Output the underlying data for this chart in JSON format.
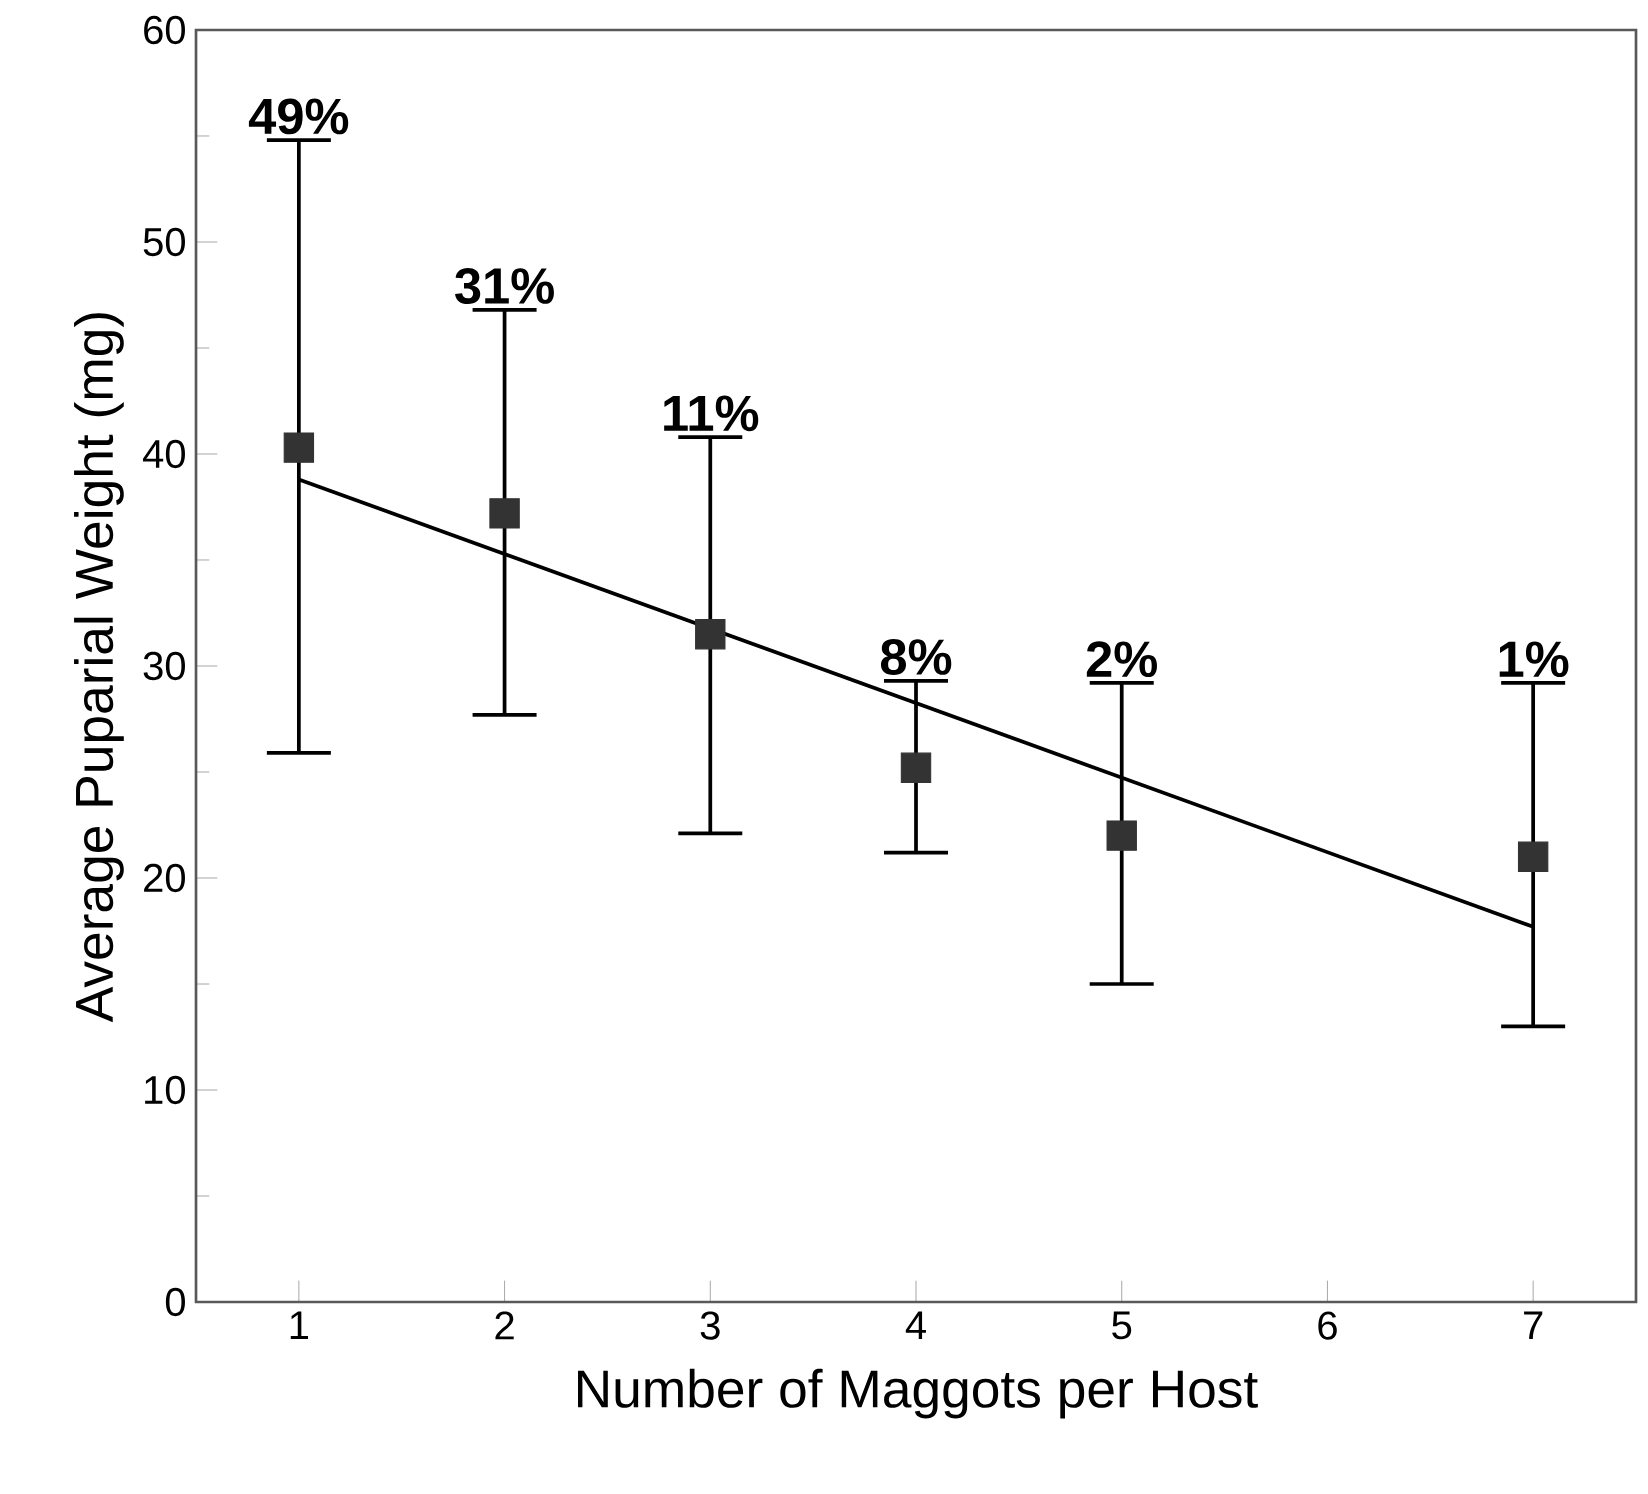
{
  "chart_data": {
    "type": "scatter",
    "xlabel": "Number of Maggots per Host",
    "ylabel": "Average Puparial Weight (mg)",
    "x": [
      1,
      2,
      3,
      4,
      5,
      7
    ],
    "series": [
      {
        "color": "#333333",
        "marker": "square",
        "values": [
          40.3,
          37.2,
          31.5,
          25.2,
          22.0,
          21.0
        ],
        "errors": [
          [
            25.9,
            54.8
          ],
          [
            27.7,
            46.8
          ],
          [
            22.1,
            40.8
          ],
          [
            21.2,
            29.3
          ],
          [
            15.0,
            29.2
          ],
          [
            13.0,
            29.2
          ]
        ]
      },
      {
        "type": "line",
        "color": "#000000",
        "x": [
          1,
          7
        ],
        "values": [
          38.8,
          17.7
        ]
      }
    ],
    "xlim": [
      0.5,
      7.5
    ],
    "ylim": [
      0,
      60
    ],
    "xticks": [
      1,
      2,
      3,
      4,
      5,
      6,
      7
    ],
    "yticks": [
      0,
      10,
      20,
      30,
      40,
      50,
      60
    ],
    "annotations": [
      {
        "text": "49%",
        "x": 1,
        "y": 54.8
      },
      {
        "text": "31%",
        "x": 2,
        "y": 46.8
      },
      {
        "text": "11%",
        "x": 3,
        "y": 40.8
      },
      {
        "text": "8%",
        "x": 4,
        "y": 29.3
      },
      {
        "text": "2%",
        "x": 5,
        "y": 29.2
      },
      {
        "text": "1%",
        "x": 7,
        "y": 29.2
      }
    ]
  }
}
